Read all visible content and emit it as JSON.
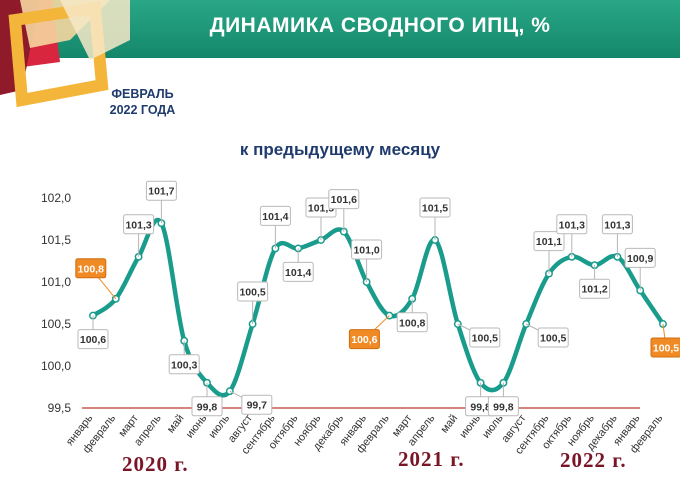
{
  "header": {
    "title": "ДИНАМИКА СВОДНОГО ИПЦ, %",
    "date_line1": "ФЕВРАЛЬ",
    "date_line2": "2022 ГОДА",
    "subtitle": "к предыдущему месяцу"
  },
  "colors": {
    "banner": "#1b9577",
    "line": "#1a9c8c",
    "highlight": "#f08a24",
    "year_text": "#7a1526",
    "baseline": "#c0392b"
  },
  "chart_data": {
    "type": "line",
    "title": "ДИНАМИКА СВОДНОГО ИПЦ, %",
    "subtitle": "к предыдущему месяцу",
    "xlabel": "",
    "ylabel": "",
    "ylim": [
      99.5,
      102.0
    ],
    "yticks": [
      "99,5",
      "100,0",
      "100,5",
      "101,0",
      "101,5",
      "102,0"
    ],
    "grid": false,
    "legend": "none",
    "categories": [
      "январь",
      "февраль",
      "март",
      "апрель",
      "май",
      "июнь",
      "июль",
      "август",
      "сентябрь",
      "октябрь",
      "ноябрь",
      "декабрь",
      "январь",
      "февраль",
      "март",
      "апрель",
      "май",
      "июнь",
      "июль",
      "август",
      "сентябрь",
      "октябрь",
      "ноябрь",
      "декабрь",
      "январь",
      "февраль"
    ],
    "values": [
      100.6,
      100.8,
      101.3,
      101.7,
      100.3,
      99.8,
      99.7,
      100.5,
      101.4,
      101.4,
      101.5,
      101.6,
      101.0,
      100.6,
      100.8,
      101.5,
      100.5,
      99.8,
      99.8,
      100.5,
      101.1,
      101.3,
      101.2,
      101.3,
      100.9,
      100.5
    ],
    "data_labels": [
      "100,6",
      "100,8",
      "101,3",
      "101,7",
      "100,3",
      "99,8",
      "99,7",
      "100,5",
      "101,4",
      "101,4",
      "101,5",
      "101,6",
      "101,0",
      "100,6",
      "100,8",
      "101,5",
      "100,5",
      "99,8",
      "99,8",
      "100,5",
      "101,1",
      "101,3",
      "101,2",
      "101,3",
      "100,9",
      "100,5"
    ],
    "highlighted": [
      1,
      13,
      25
    ],
    "year_labels": [
      "2020 г.",
      "2021 г.",
      "2022 г."
    ]
  }
}
